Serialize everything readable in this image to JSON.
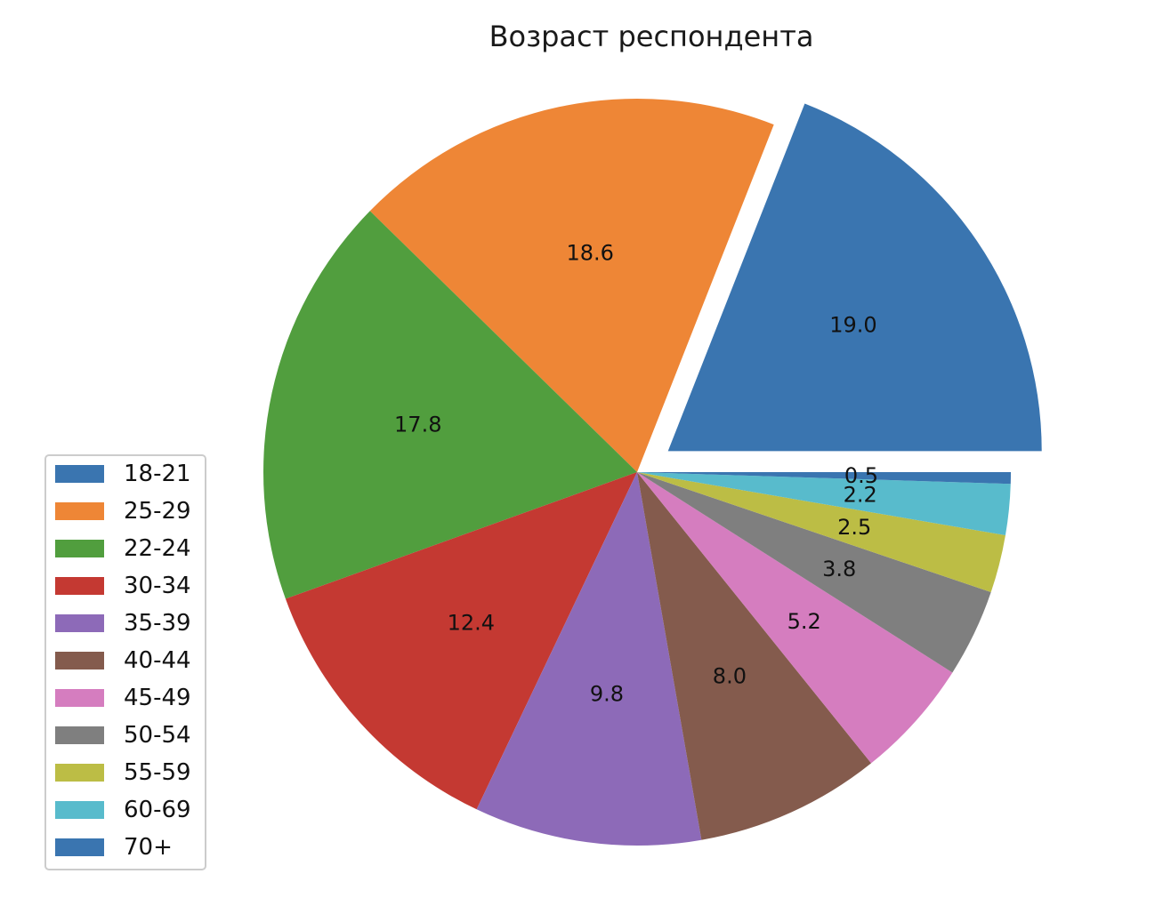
{
  "chart_data": {
    "type": "pie",
    "title": "Возраст респондента",
    "categories": [
      "18-21",
      "25-29",
      "22-24",
      "30-34",
      "35-39",
      "40-44",
      "45-49",
      "50-54",
      "55-59",
      "60-69",
      "70+"
    ],
    "values": [
      19.0,
      18.6,
      17.8,
      12.4,
      9.8,
      8.0,
      5.2,
      3.8,
      2.5,
      2.2,
      0.5
    ],
    "value_labels": [
      "19.0",
      "18.6",
      "17.8",
      "12.4",
      "9.8",
      "8.0",
      "5.2",
      "3.8",
      "2.5",
      "2.2",
      "0.5"
    ],
    "colors": [
      "#3a75b0",
      "#ee8636",
      "#519e3e",
      "#c43932",
      "#8d6ab8",
      "#845b4d",
      "#d57dbf",
      "#7f7f7f",
      "#bcbd45",
      "#58bbcc",
      "#3a75b0"
    ],
    "exploded": [
      "18-21"
    ],
    "start_angle_deg": 0,
    "direction": "counterclockwise",
    "legend_position": "lower-left"
  }
}
